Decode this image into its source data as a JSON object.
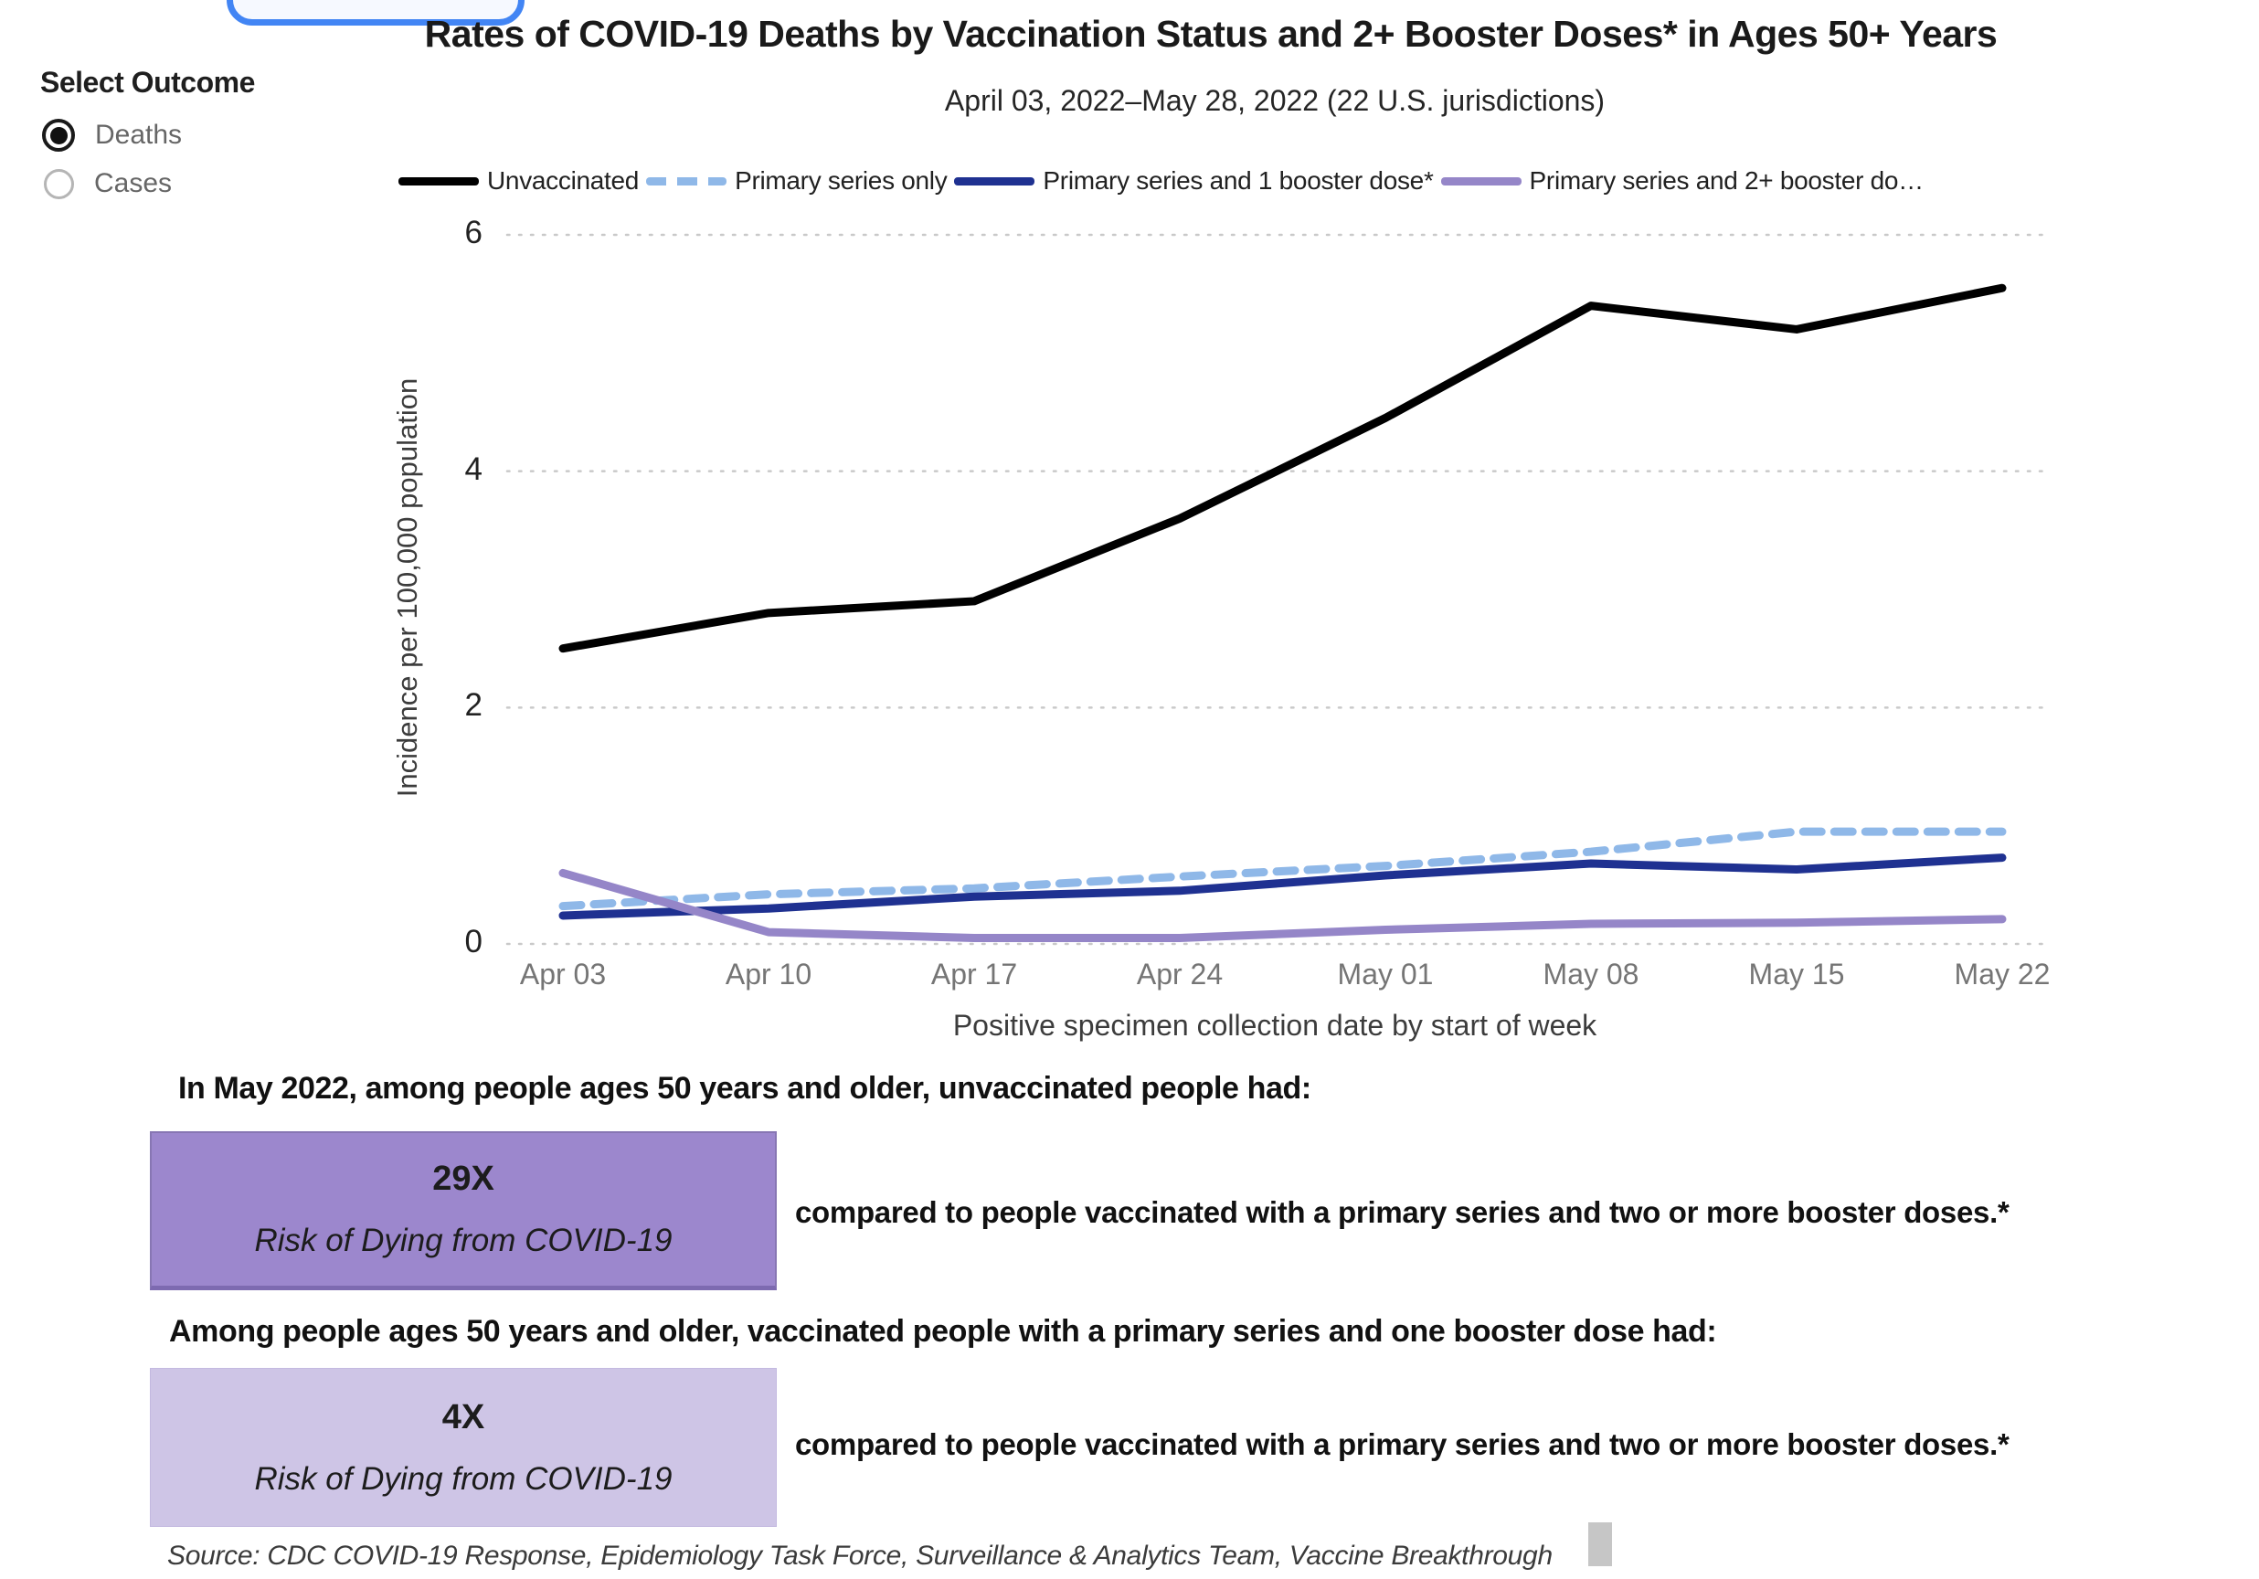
{
  "header": {
    "title": "Rates of COVID-19 Deaths by Vaccination Status and 2+ Booster Doses* in Ages 50+ Years",
    "subtitle": "April 03, 2022–May 28, 2022 (22 U.S. jurisdictions)"
  },
  "outcome_selector": {
    "label": "Select Outcome",
    "options": [
      {
        "label": "Deaths",
        "selected": true
      },
      {
        "label": "Cases",
        "selected": false
      }
    ]
  },
  "chart_data": {
    "type": "line",
    "title": "Rates of COVID-19 Deaths by Vaccination Status and 2+ Booster Doses* in Ages 50+ Years",
    "subtitle": "April 03, 2022–May 28, 2022 (22 U.S. jurisdictions)",
    "x": [
      "Apr 03",
      "Apr 10",
      "Apr 17",
      "Apr 24",
      "May 01",
      "May 08",
      "May 15",
      "May 22"
    ],
    "xlabel": "Positive specimen collection date by start of week",
    "ylabel": "Incidence per 100,000 population",
    "ylim": [
      0,
      6
    ],
    "yticks": [
      0,
      2,
      4,
      6
    ],
    "grid": "dotted-horizontal",
    "legend_position": "top",
    "series": [
      {
        "name": "Unvaccinated",
        "color": "#000000",
        "style": "solid",
        "values": [
          2.5,
          2.8,
          2.9,
          3.6,
          4.45,
          5.4,
          5.2,
          5.55
        ]
      },
      {
        "name": "Primary series only",
        "color": "#8FB8E8",
        "style": "dashed",
        "values": [
          0.32,
          0.42,
          0.47,
          0.57,
          0.66,
          0.78,
          0.95,
          0.95
        ]
      },
      {
        "name": "Primary series and 1 booster dose*",
        "color": "#1F3191",
        "style": "solid",
        "values": [
          0.24,
          0.3,
          0.4,
          0.45,
          0.58,
          0.68,
          0.63,
          0.73
        ]
      },
      {
        "name": "Primary series and 2+ booster do…",
        "color": "#9586C8",
        "style": "solid",
        "values": [
          0.6,
          0.1,
          0.05,
          0.05,
          0.12,
          0.17,
          0.18,
          0.21
        ]
      }
    ]
  },
  "callouts": [
    {
      "intro": "In May 2022, among people ages 50 years and older, unvaccinated people had:",
      "factor": "29X",
      "box_label": "Risk of Dying from COVID-19",
      "comparison": "compared to people vaccinated with a primary series and two or more booster doses.*",
      "box_color": "#9C87CD"
    },
    {
      "intro": "Among people ages 50 years and older, vaccinated people with a primary series and one booster dose had:",
      "factor": "4X",
      "box_label": "Risk of Dying from COVID-19",
      "comparison": "compared to people vaccinated with a primary series and two or more booster doses.*",
      "box_color": "#CEC5E6"
    }
  ],
  "source": "Source: CDC COVID-19 Response, Epidemiology Task Force, Surveillance & Analytics Team, Vaccine Breakthrough"
}
